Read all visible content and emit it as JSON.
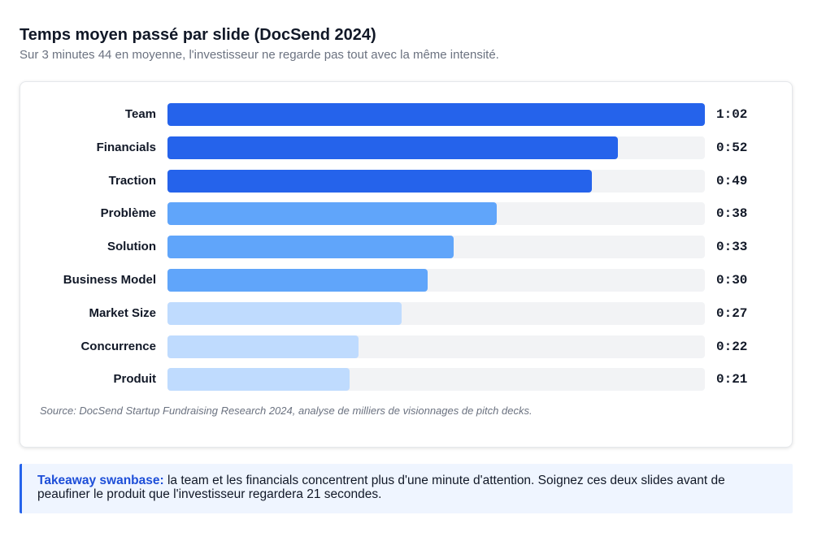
{
  "header": {
    "title": "Temps moyen passé par slide (DocSend 2024)",
    "subtitle": "Sur 3 minutes 44 en moyenne, l'investisseur ne regarde pas tout avec la même intensité."
  },
  "chart_data": {
    "type": "bar",
    "orientation": "horizontal",
    "categories": [
      "Team",
      "Financials",
      "Traction",
      "Problème",
      "Solution",
      "Business Model",
      "Market Size",
      "Concurrence",
      "Produit"
    ],
    "values_seconds": [
      62,
      52,
      49,
      38,
      33,
      30,
      27,
      22,
      21
    ],
    "value_labels": [
      "1:02",
      "0:52",
      "0:49",
      "0:38",
      "0:33",
      "0:30",
      "0:27",
      "0:22",
      "0:21"
    ],
    "xlim": [
      0,
      62
    ],
    "bar_colors": [
      "#2563eb",
      "#2563eb",
      "#2563eb",
      "#60a5fa",
      "#60a5fa",
      "#60a5fa",
      "#bfdbfe",
      "#bfdbfe",
      "#bfdbfe"
    ],
    "track_color": "#f2f3f5",
    "grid": false,
    "title": "",
    "xlabel": "",
    "ylabel": ""
  },
  "source": "Source: DocSend Startup Fundraising Research 2024, analyse de milliers de visionnages de pitch decks.",
  "takeaway": {
    "lead": "Takeaway swanbase:",
    "text": " la team et les financials concentrent plus d'une minute d'attention. Soignez ces deux slides avant de peaufiner le produit que l'investisseur regardera 21 secondes."
  }
}
